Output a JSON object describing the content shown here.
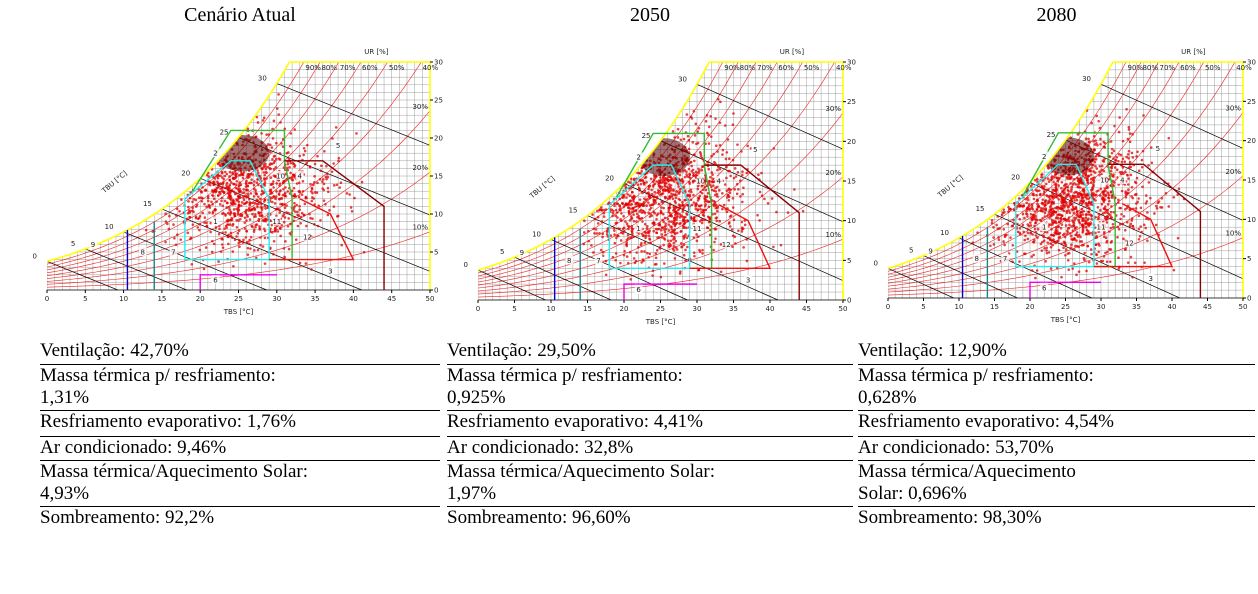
{
  "headers": [
    "Cenário Atual",
    "2050",
    "2080"
  ],
  "chart_labels": {
    "x_axis": "TBS [°C]",
    "tbu_axis": "TBU [°C]",
    "ur_axis": "UR [%]",
    "xticks": [
      0,
      5,
      10,
      15,
      20,
      25,
      30,
      35,
      40,
      45,
      50
    ],
    "yticks": [
      0,
      5,
      10,
      15,
      20,
      25,
      30
    ],
    "ur_ticks": [
      "90%",
      "80%",
      "70%",
      "60%",
      "50%",
      "40%",
      "30%",
      "20%",
      "10%"
    ],
    "tbu_ticks": [
      0,
      5,
      10,
      15,
      20,
      25,
      30
    ],
    "zones": [
      "1",
      "2",
      "3",
      "4",
      "5",
      "6",
      "7",
      "8",
      "9",
      "10",
      "11",
      "12"
    ]
  },
  "table": {
    "rows": [
      [
        [
          "Ventilação: 42,70%"
        ],
        [
          "Ventilação: 29,50%"
        ],
        [
          "Ventilação: 12,90%"
        ]
      ],
      [
        [
          "Massa térmica p/ resfriamento:",
          "1,31%"
        ],
        [
          "Massa térmica p/ resfriamento:",
          "0,925%"
        ],
        [
          "Massa térmica p/ resfriamento:",
          "0,628%"
        ]
      ],
      [
        [
          "Resfriamento evaporativo: 1,76%"
        ],
        [
          "Resfriamento evaporativo: 4,41%"
        ],
        [
          "Resfriamento evaporativo: 4,54%"
        ]
      ],
      [
        [
          "Ar condicionado: 9,46%"
        ],
        [
          "Ar condicionado: 32,8%"
        ],
        [
          "Ar condicionado: 53,70%"
        ]
      ],
      [
        [
          "Massa térmica/Aquecimento Solar:",
          "4,93%"
        ],
        [
          "Massa térmica/Aquecimento Solar:",
          "1,97%"
        ],
        [
          "Massa térmica/Aquecimento",
          "Solar: 0,696%"
        ]
      ],
      [
        [
          "Sombreamento: 92,2%"
        ],
        [
          "Sombreamento: 96,60%"
        ],
        [
          "Sombreamento: 98,30%"
        ]
      ]
    ]
  }
}
